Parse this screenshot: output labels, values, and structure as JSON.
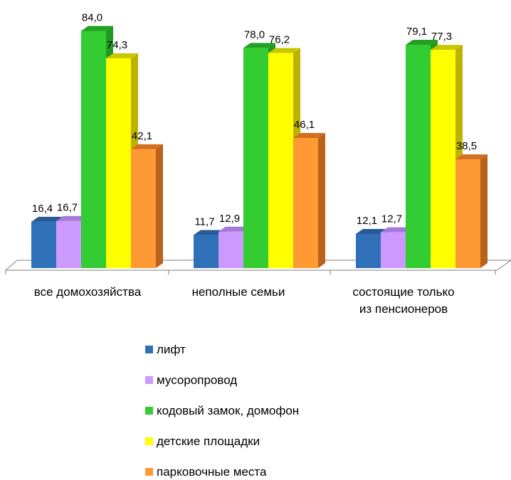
{
  "chart_data": {
    "type": "bar",
    "style": "3d-clustered-column",
    "categories": [
      [
        "все домохозяйства"
      ],
      [
        "неполные семьи"
      ],
      [
        "состоящие только",
        "из пенсионеров"
      ]
    ],
    "series": [
      {
        "name": "лифт",
        "values": [
          16.4,
          11.7,
          12.1
        ],
        "labels": [
          "16,4",
          "11,7",
          "12,1"
        ],
        "color": "#3070B8",
        "top": "#245A96",
        "side": "#1E4C80"
      },
      {
        "name": "мусоропровод",
        "values": [
          16.7,
          12.9,
          12.7
        ],
        "labels": [
          "16,7",
          "12,9",
          "12,7"
        ],
        "color": "#CC99FF",
        "top": "#A678D8",
        "side": "#9D6FCC"
      },
      {
        "name": "кодовый замок, домофон",
        "values": [
          84.0,
          78.0,
          79.1
        ],
        "labels": [
          "84,0",
          "78,0",
          "79,1"
        ],
        "color": "#33CC33",
        "top": "#23A023",
        "side": "#229922"
      },
      {
        "name": "детские площадки",
        "values": [
          74.3,
          76.2,
          77.3
        ],
        "labels": [
          "74,3",
          "76,2",
          "77,3"
        ],
        "color": "#FFFF00",
        "top": "#C8C800",
        "side": "#BDB200"
      },
      {
        "name": "парковочные места",
        "values": [
          42.1,
          46.1,
          38.5
        ],
        "labels": [
          "42,1",
          "46,1",
          "38,5"
        ],
        "color": "#FF9933",
        "top": "#D07020",
        "side": "#B8621C"
      }
    ],
    "ylim": [
      0,
      100
    ],
    "grid": false,
    "legend": "bottom"
  }
}
